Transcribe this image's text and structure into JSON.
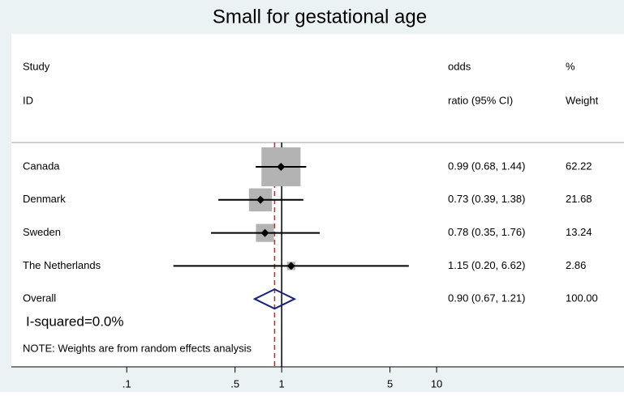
{
  "chart_data": {
    "type": "forest",
    "title": "Small for gestational age",
    "columns": {
      "study": [
        "Study",
        "ID"
      ],
      "estimate": [
        "odds",
        "ratio (95% CI)"
      ],
      "weight": [
        "%",
        "Weight"
      ]
    },
    "studies": [
      {
        "name": "Canada",
        "or": 0.99,
        "ci": [
          0.68,
          1.44
        ],
        "label": "0.99 (0.68, 1.44)",
        "weight": 62.22
      },
      {
        "name": "Denmark",
        "or": 0.73,
        "ci": [
          0.39,
          1.38
        ],
        "label": "0.73 (0.39, 1.38)",
        "weight": 21.68
      },
      {
        "name": "Sweden",
        "or": 0.78,
        "ci": [
          0.35,
          1.76
        ],
        "label": "0.78 (0.35, 1.76)",
        "weight": 13.24
      },
      {
        "name": "The Netherlands",
        "or": 1.15,
        "ci": [
          0.2,
          6.62
        ],
        "label": "1.15 (0.20, 6.62)",
        "weight": 2.86
      }
    ],
    "overall": {
      "name": "Overall",
      "or": 0.9,
      "ci": [
        0.67,
        1.21
      ],
      "label": "0.90 (0.67, 1.21)",
      "weight": {
        "value": 100,
        "label": "100.00"
      }
    },
    "heterogeneity": "I-squared=0.0%",
    "note": "NOTE: Weights are from random effects analysis",
    "log_x": true,
    "xlim": [
      0.018,
      162
    ],
    "xticks": [
      {
        "value": 0.1,
        "label": ".1"
      },
      {
        "value": 0.5,
        "label": ".5"
      },
      1,
      5,
      10
    ],
    "null_line": 1,
    "box_color": "#b3b3b3",
    "point_color": "#000000",
    "diamond_color": "#1a237e",
    "ref_color": "#9e3b3b"
  }
}
